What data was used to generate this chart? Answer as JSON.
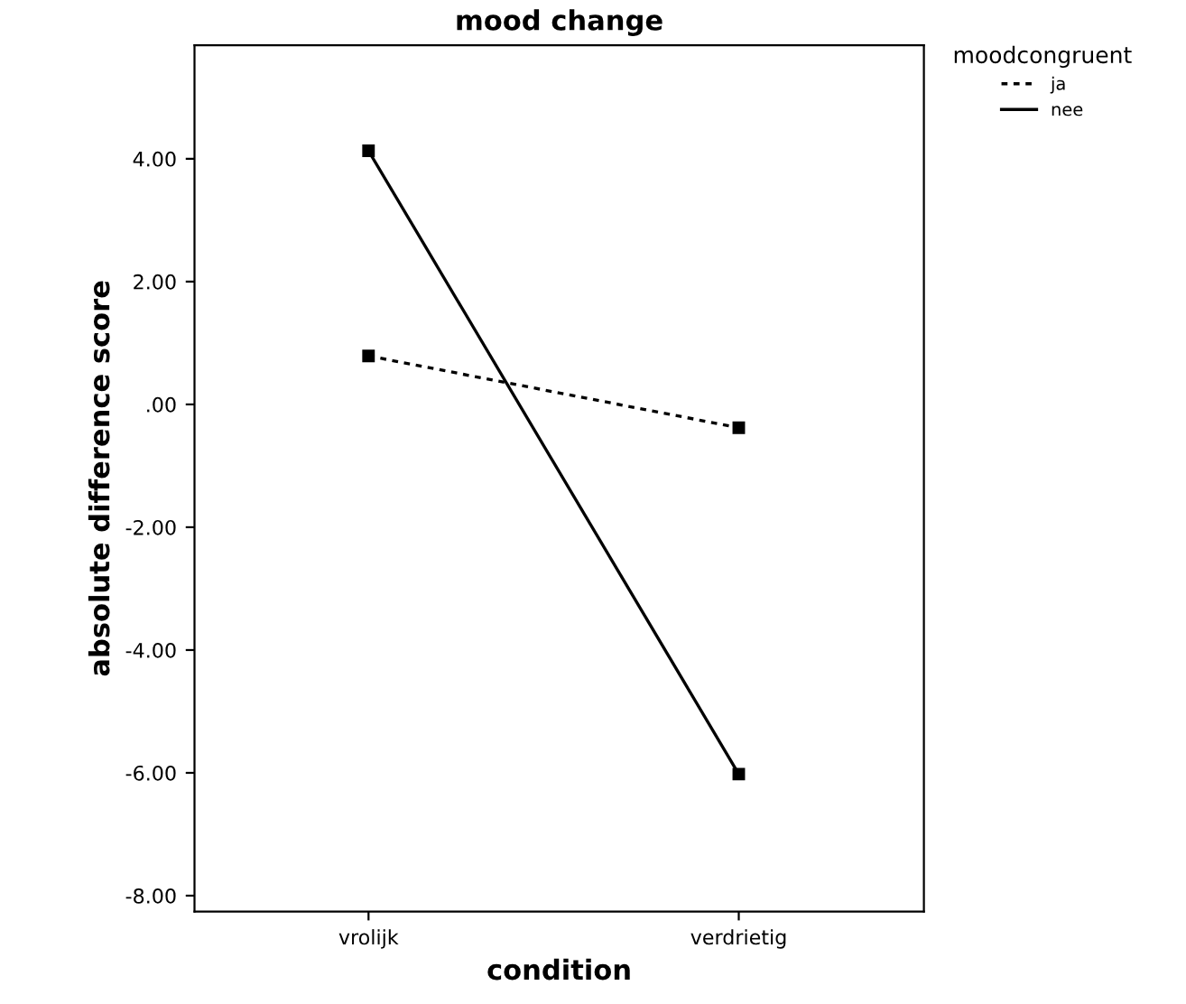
{
  "chart_data": {
    "type": "line",
    "title": "mood change",
    "xlabel": "condition",
    "ylabel": "absolute difference score",
    "legend_title": "moodcongruent",
    "categories": [
      "vrolijk",
      "verdrietig"
    ],
    "series": [
      {
        "name": "ja",
        "color": "#000000",
        "values": [
          0.79,
          -0.38
        ],
        "line_style": "dashed"
      },
      {
        "name": "nee",
        "color": "#000000",
        "values": [
          4.13,
          -6.02
        ],
        "line_style": "solid"
      }
    ],
    "ylim": [
      -8.26,
      5.85
    ],
    "yticks": [
      {
        "value": 4,
        "label": "4.00"
      },
      {
        "value": 2,
        "label": "2.00"
      },
      {
        "value": 0,
        "label": ".00"
      },
      {
        "value": -2,
        "label": "-2.00"
      },
      {
        "value": -4,
        "label": "-4.00"
      },
      {
        "value": -6,
        "label": "-6.00"
      },
      {
        "value": -8,
        "label": "-8.00"
      }
    ],
    "marker": "square",
    "legend": "top right",
    "grid": false
  }
}
